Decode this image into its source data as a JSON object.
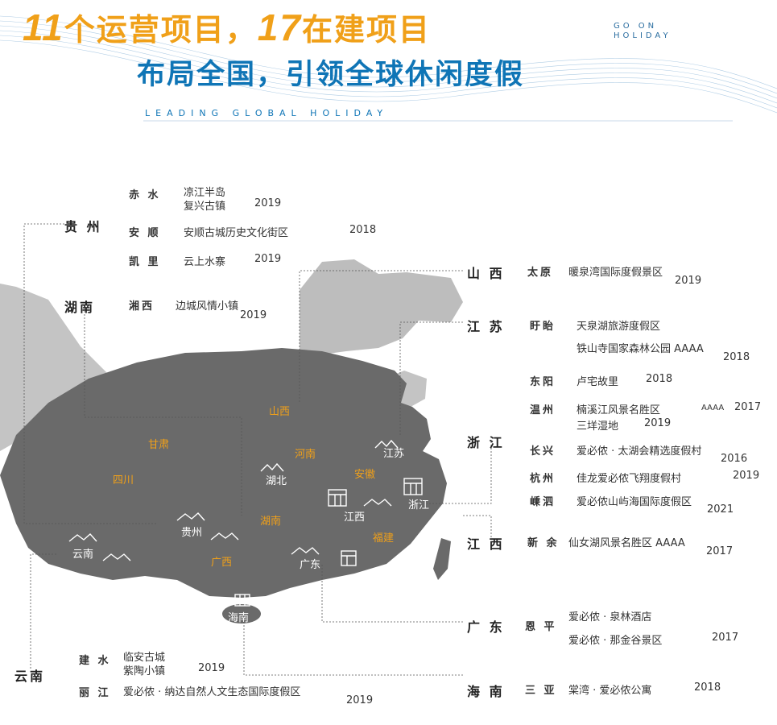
{
  "header": {
    "line1_num1": "11",
    "line1_text1": "个运营项目，",
    "line1_num2": "17",
    "line1_text2": "在建项目",
    "line2": "布局全国，引领全球休闲度假",
    "subtitle_en": "LEADING GLOBAL HOLIDAY",
    "tag_line1": "GO ON",
    "tag_line2": "HOLIDAY"
  },
  "colors": {
    "orange": "#f0a019",
    "blue": "#0f75b6",
    "map_dark": "#6a6a6a",
    "map_light": "#bdbdbd"
  },
  "left_groups": {
    "guizhou": {
      "name": "贵 州",
      "chishui": {
        "city": "赤 水",
        "p1": "凉江半岛",
        "p2": "复兴古镇",
        "y2": "2019"
      },
      "anshun": {
        "city": "安 顺",
        "p1": "安顺古城历史文化街区",
        "y1": "2018"
      },
      "kaili": {
        "city": "凯 里",
        "p1": "云上水寨",
        "y1": "2019"
      }
    },
    "hunan": {
      "name": "湖南",
      "xiangxi": {
        "city": "湘西",
        "p1": "边城风情小镇",
        "y1": "2019"
      }
    },
    "yunnan": {
      "name": "云南",
      "jianshui": {
        "city": "建 水",
        "p1": "临安古城",
        "p2": "紫陶小镇",
        "y2": "2019"
      },
      "lijiang": {
        "city": "丽 江",
        "p1": "爱必侬 · 纳达自然人文生态国际度假区",
        "y1": "2019"
      }
    }
  },
  "right_groups": {
    "shanxi": {
      "name": "山 西",
      "taiyuan": {
        "city": "太原",
        "p1": "暖泉湾国际度假景区",
        "y1": "2019"
      }
    },
    "jiangsu": {
      "name": "江 苏",
      "xuyi": {
        "city": "盱眙",
        "p1": "天泉湖旅游度假区",
        "p2": "铁山寺国家森林公园 AAAA",
        "y2": "2018"
      }
    },
    "zhejiang": {
      "name": "浙 江",
      "dongyang": {
        "city": "东阳",
        "p1": "卢宅故里",
        "y1": "2018"
      },
      "wenzhou": {
        "city": "温州",
        "p1": "楠溪江风景名胜区",
        "p1_level": "AAAA",
        "y1": "2017",
        "p2": "三垟湿地",
        "y2": "2019"
      },
      "changxing": {
        "city": "长兴",
        "p1": "爱必侬 · 太湖会精选度假村",
        "y1": "2016"
      },
      "hangzhou": {
        "city": "杭州",
        "p1": "佳龙爱必侬飞翔度假村",
        "y1": "2019"
      },
      "shengsi": {
        "city": "嵊泗",
        "p1": "爱必侬山屿海国际度假区",
        "y1": "2021"
      }
    },
    "jiangxi": {
      "name": "江 西",
      "xinyu": {
        "city": "新 余",
        "p1": "仙女湖风景名胜区 AAAA",
        "y1": "2017"
      }
    },
    "guangdong": {
      "name": "广 东",
      "enping": {
        "city": "恩 平",
        "p1": "爱必侬 · 泉林酒店",
        "p2": "爱必侬 · 那金谷景区",
        "y2": "2017"
      }
    },
    "hainan": {
      "name": "海 南",
      "sanya": {
        "city": "三 亚",
        "p1": "棠湾 · 爱必侬公寓",
        "y1": "2018"
      }
    }
  },
  "map_labels": {
    "shanxi": "山西",
    "henan": "河南",
    "gansu": "甘肃",
    "sichuan": "四川",
    "anhui": "安徽",
    "jiangsu": "江苏",
    "hubei": "湖北",
    "zhejiang": "浙江",
    "jiangxi": "江西",
    "hunan": "湖南",
    "fujian": "福建",
    "guizhou": "贵州",
    "yunnan": "云南",
    "guangxi": "广西",
    "guangdong": "广东",
    "hainan": "海南"
  }
}
